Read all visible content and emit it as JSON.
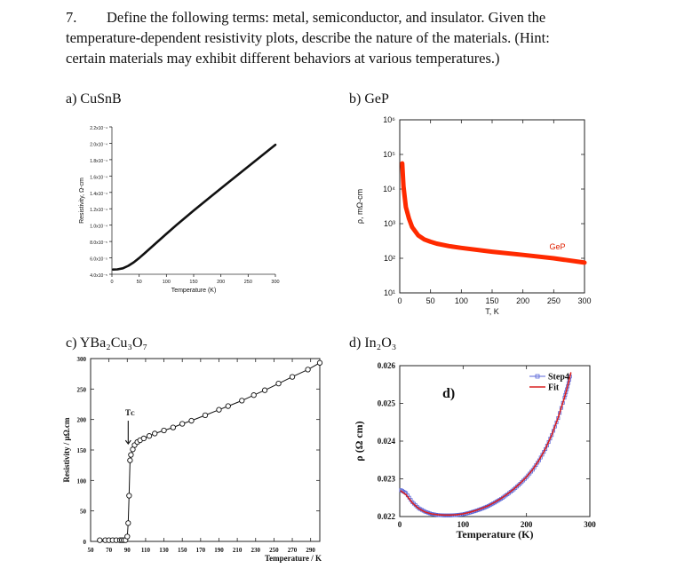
{
  "question": {
    "number": "7.",
    "lines": [
      "Define the following terms: metal, semiconductor, and insulator.  Given the",
      "temperature-dependent resistivity plots, describe the nature of the materials. (Hint:",
      "certain materials may exhibit different behaviors at various temperatures.)"
    ]
  },
  "panels": {
    "a": "a) CuSnB",
    "b": "b) GeP",
    "c": "c) YBa₂Cu₃O₇",
    "d": "d) In₂O₃"
  },
  "chart_data": [
    {
      "type": "line",
      "panel": "a",
      "xlabel": "Temperature (K)",
      "ylabel": "Resistivity, Ω-cm",
      "xlim": [
        0,
        300
      ],
      "ylim": [
        4e-05,
        0.00022
      ],
      "xticks": [
        "0",
        "50",
        "100",
        "150",
        "200",
        "250",
        "300"
      ],
      "yticks": [
        "4.0x10⁻⁵",
        "6.0x10⁻⁵",
        "8.0x10⁻⁵",
        "1.0x10⁻⁴",
        "1.2x10⁻⁴",
        "1.4x10⁻⁴",
        "1.6x10⁻⁴",
        "1.8x10⁻⁴",
        "2.0x10⁻⁴",
        "2.2x10⁻⁴"
      ],
      "x": [
        2,
        10,
        20,
        30,
        40,
        50,
        60,
        80,
        100,
        120,
        150,
        180,
        210,
        240,
        270,
        300
      ],
      "y": [
        4.58e-05,
        4.6e-05,
        4.73e-05,
        5.03e-05,
        5.45e-05,
        5.98e-05,
        6.56e-05,
        7.75e-05,
        8.93e-05,
        0.000101,
        0.0001178,
        0.000134,
        0.0001502,
        0.0001662,
        0.0001822,
        0.0001982
      ],
      "color": "#111111"
    },
    {
      "type": "line",
      "panel": "b",
      "xlabel": "T, K",
      "ylabel": "ρ, mΩ-cm",
      "yscale": "log",
      "xlim": [
        0,
        300
      ],
      "ylim": [
        10,
        1000000
      ],
      "xticks": [
        "0",
        "50",
        "100",
        "150",
        "200",
        "250",
        "300"
      ],
      "yticks": [
        "10¹",
        "10²",
        "10³",
        "10⁴",
        "10⁵",
        "10⁶"
      ],
      "series_label": "GeP",
      "x": [
        4,
        6,
        10,
        15,
        20,
        30,
        40,
        50,
        60,
        80,
        100,
        150,
        200,
        250,
        300
      ],
      "y": [
        55000,
        12000,
        3000,
        1400,
        800,
        460,
        350,
        300,
        265,
        225,
        200,
        155,
        125,
        100,
        75
      ],
      "color": "#ff2a00"
    },
    {
      "type": "scatter",
      "panel": "c",
      "xlabel": "Temperature / K",
      "ylabel": "Resistivity / μΩ.cm",
      "xlim": [
        50,
        300
      ],
      "ylim": [
        0,
        300
      ],
      "xticks": [
        "50",
        "70",
        "90",
        "110",
        "130",
        "150",
        "170",
        "190",
        "210",
        "230",
        "250",
        "270",
        "290"
      ],
      "yticks": [
        "0",
        "50",
        "100",
        "150",
        "200",
        "250",
        "300"
      ],
      "annotation": "Tᴄ",
      "x": [
        60,
        66,
        70,
        74,
        78,
        82,
        84,
        86,
        88,
        90,
        91,
        92,
        93,
        94,
        96,
        98,
        101,
        104,
        108,
        114,
        120,
        130,
        140,
        150,
        160,
        175,
        190,
        200,
        215,
        228,
        240,
        255,
        270,
        287,
        300
      ],
      "y": [
        2,
        2,
        2,
        2,
        2,
        2,
        2,
        2,
        2,
        8,
        30,
        75,
        133,
        142,
        151,
        158,
        163,
        166,
        169,
        173,
        177,
        182,
        187,
        193,
        198,
        207,
        216,
        222,
        231,
        240,
        248,
        259,
        270,
        282,
        293
      ],
      "color": "#111111"
    },
    {
      "type": "line",
      "panel": "d",
      "xlabel": "Temperature (K)",
      "ylabel": "ρ (Ω cm)",
      "panel_tag": "d)",
      "xlim": [
        0,
        300
      ],
      "ylim": [
        0.022,
        0.026
      ],
      "xticks": [
        "0",
        "100",
        "200",
        "300"
      ],
      "yticks": [
        "0.022",
        "0.023",
        "0.024",
        "0.025",
        "0.026"
      ],
      "series": [
        {
          "name": "Step4",
          "color": "#5a66d8",
          "x": [
            2,
            10,
            20,
            30,
            40,
            50,
            60,
            70,
            80,
            90,
            100,
            110,
            120,
            130,
            140,
            150,
            160,
            170,
            180,
            190,
            200,
            210,
            220,
            230,
            240,
            250,
            260,
            265,
            270
          ],
          "y": [
            0.0227,
            0.02262,
            0.02238,
            0.02222,
            0.02213,
            0.02207,
            0.02204,
            0.02203,
            0.02203,
            0.02204,
            0.02206,
            0.0221,
            0.02215,
            0.02221,
            0.02228,
            0.02237,
            0.02247,
            0.02259,
            0.02272,
            0.02287,
            0.02304,
            0.02324,
            0.02349,
            0.02379,
            0.02416,
            0.02461,
            0.02515,
            0.02545,
            0.0258
          ]
        },
        {
          "name": "Fit",
          "color": "#d82020",
          "x": [
            2,
            10,
            20,
            30,
            40,
            50,
            60,
            70,
            80,
            90,
            100,
            110,
            120,
            130,
            140,
            150,
            160,
            170,
            180,
            190,
            200,
            210,
            220,
            230,
            240,
            250,
            260,
            265,
            270
          ],
          "y": [
            0.02268,
            0.02258,
            0.02236,
            0.02221,
            0.02212,
            0.02207,
            0.02205,
            0.02204,
            0.02204,
            0.02205,
            0.02207,
            0.02211,
            0.02216,
            0.02222,
            0.02229,
            0.02238,
            0.02248,
            0.0226,
            0.02273,
            0.02288,
            0.02305,
            0.02325,
            0.0235,
            0.0238,
            0.02417,
            0.02462,
            0.02516,
            0.02546,
            0.02581
          ]
        }
      ]
    }
  ]
}
